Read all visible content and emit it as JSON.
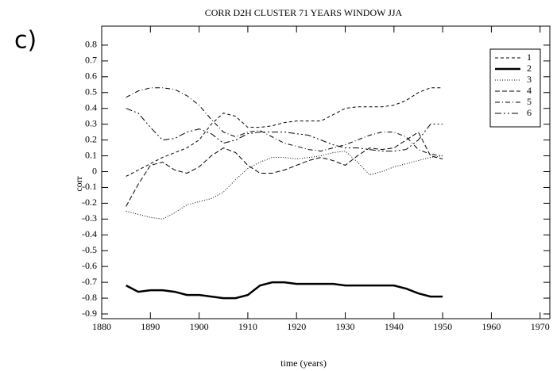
{
  "chart_data": {
    "type": "line",
    "title": "CORR D2H CLUSTER 71 YEARS WINDOW JJA",
    "panel_label": "c)",
    "x_label": "time (years)",
    "y_label": "corr",
    "x": [
      1885,
      1887.5,
      1890,
      1892.5,
      1895,
      1897.5,
      1900,
      1902.5,
      1905,
      1907.5,
      1910,
      1912.5,
      1915,
      1917.5,
      1920,
      1922.5,
      1925,
      1927.5,
      1930,
      1932.5,
      1935,
      1937.5,
      1940,
      1942.5,
      1945,
      1947.5,
      1950
    ],
    "series": [
      {
        "name": "1",
        "color": "#000000",
        "dash": "4,3",
        "width": 1,
        "values": [
          -0.03,
          0.01,
          0.05,
          0.09,
          0.12,
          0.15,
          0.2,
          0.3,
          0.37,
          0.35,
          0.28,
          0.28,
          0.29,
          0.31,
          0.32,
          0.32,
          0.32,
          0.36,
          0.4,
          0.41,
          0.41,
          0.41,
          0.42,
          0.45,
          0.5,
          0.53,
          0.53
        ]
      },
      {
        "name": "2",
        "color": "#000000",
        "dash": "none",
        "width": 2.5,
        "values": [
          -0.72,
          -0.76,
          -0.75,
          -0.75,
          -0.76,
          -0.78,
          -0.78,
          -0.79,
          -0.8,
          -0.8,
          -0.78,
          -0.72,
          -0.7,
          -0.7,
          -0.71,
          -0.71,
          -0.71,
          -0.71,
          -0.72,
          -0.72,
          -0.72,
          -0.72,
          -0.72,
          -0.74,
          -0.77,
          -0.79,
          -0.79
        ]
      },
      {
        "name": "3",
        "color": "#000000",
        "dash": "1,2",
        "width": 1,
        "values": [
          -0.25,
          -0.27,
          -0.29,
          -0.3,
          -0.26,
          -0.21,
          -0.19,
          -0.17,
          -0.13,
          -0.05,
          0.02,
          0.06,
          0.09,
          0.09,
          0.08,
          0.09,
          0.1,
          0.12,
          0.13,
          0.06,
          -0.02,
          0,
          0.03,
          0.05,
          0.07,
          0.09,
          0.1
        ]
      },
      {
        "name": "4",
        "color": "#000000",
        "dash": "6,3",
        "width": 1,
        "values": [
          -0.22,
          -0.08,
          0.04,
          0.06,
          0.01,
          -0.01,
          0.03,
          0.1,
          0.15,
          0.12,
          0.04,
          -0.01,
          -0.01,
          0.01,
          0.04,
          0.07,
          0.09,
          0.07,
          0.04,
          0.1,
          0.15,
          0.14,
          0.15,
          0.2,
          0.25,
          0.1,
          0.08
        ]
      },
      {
        "name": "5",
        "color": "#000000",
        "dash": "6,3,1,3",
        "width": 1,
        "values": [
          0.47,
          0.51,
          0.53,
          0.53,
          0.52,
          0.48,
          0.42,
          0.33,
          0.25,
          0.22,
          0.25,
          0.26,
          0.22,
          0.18,
          0.16,
          0.14,
          0.13,
          0.15,
          0.17,
          0.2,
          0.23,
          0.25,
          0.25,
          0.22,
          0.14,
          0.11,
          0.1
        ]
      },
      {
        "name": "6",
        "color": "#000000",
        "dash": "8,3,2,3,2,3",
        "width": 1,
        "values": [
          0.4,
          0.37,
          0.28,
          0.2,
          0.21,
          0.25,
          0.27,
          0.24,
          0.18,
          0.2,
          0.24,
          0.25,
          0.25,
          0.25,
          0.24,
          0.23,
          0.2,
          0.17,
          0.15,
          0.15,
          0.14,
          0.13,
          0.13,
          0.14,
          0.2,
          0.3,
          0.3
        ]
      }
    ],
    "xlim": [
      1880,
      1972
    ],
    "xticks": [
      1880,
      1890,
      1900,
      1910,
      1920,
      1930,
      1940,
      1950,
      1960,
      1970
    ],
    "ylim": [
      -0.93,
      0.92
    ],
    "yticks": [
      0.8,
      0.7,
      0.6,
      0.5,
      0.4,
      0.3,
      0.2,
      0.1,
      0,
      -0.1,
      -0.2,
      -0.3,
      -0.4,
      -0.5,
      -0.6,
      -0.7,
      -0.8,
      -0.9
    ],
    "legend": "top-right"
  }
}
